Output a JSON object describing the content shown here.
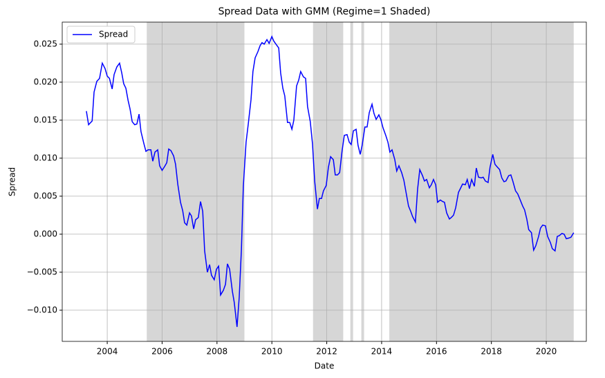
{
  "chart_data": {
    "type": "line",
    "title": "Spread Data with GMM (Regime=1 Shaded)",
    "x_label": "Date",
    "y_label": "Spread",
    "grid": true,
    "legend": "upper left",
    "shade_color": "#d6d6d6",
    "shaded_regions": [
      [
        2005.44,
        2009.0
      ],
      [
        2011.5,
        2012.6
      ],
      [
        2012.86,
        2012.96
      ],
      [
        2013.26,
        2013.36
      ],
      [
        2014.28,
        2021.0
      ]
    ],
    "xlim": [
      2002.36,
      2021.46
    ],
    "ylim": [
      -0.0141,
      0.0279
    ],
    "xticks": [
      2004,
      2006,
      2008,
      2010,
      2012,
      2014,
      2016,
      2018,
      2020
    ],
    "yticks": [
      {
        "value": -0.01,
        "label": "−0.010"
      },
      {
        "value": -0.005,
        "label": "−0.005"
      },
      {
        "value": 0,
        "label": "0.000"
      },
      0.005,
      {
        "value": 0.01,
        "label": "0.010"
      },
      0.015,
      {
        "value": 0.02,
        "label": "0.020"
      },
      0.025
    ],
    "x": [
      2003.24,
      2003.32,
      2003.45,
      2003.52,
      2003.62,
      2003.72,
      2003.82,
      2003.92,
      2004.0,
      2004.08,
      2004.18,
      2004.25,
      2004.35,
      2004.45,
      2004.53,
      2004.6,
      2004.68,
      2004.76,
      2004.83,
      2004.91,
      2005.0,
      2005.08,
      2005.16,
      2005.23,
      2005.33,
      2005.41,
      2005.49,
      2005.59,
      2005.66,
      2005.74,
      2005.84,
      2005.91,
      2006.0,
      2006.09,
      2006.17,
      2006.24,
      2006.32,
      2006.42,
      2006.49,
      2006.57,
      2006.67,
      2006.75,
      2006.82,
      2006.9,
      2007.0,
      2007.07,
      2007.15,
      2007.22,
      2007.32,
      2007.4,
      2007.48,
      2007.55,
      2007.65,
      2007.73,
      2007.8,
      2007.9,
      2007.98,
      2008.06,
      2008.13,
      2008.23,
      2008.31,
      2008.38,
      2008.46,
      2008.56,
      2008.63,
      2008.73,
      2008.81,
      2008.89,
      2008.96,
      2009.06,
      2009.14,
      2009.24,
      2009.31,
      2009.39,
      2009.49,
      2009.57,
      2009.64,
      2009.72,
      2009.82,
      2009.9,
      2010.0,
      2010.07,
      2010.15,
      2010.25,
      2010.32,
      2010.4,
      2010.47,
      2010.57,
      2010.65,
      2010.73,
      2010.8,
      2010.9,
      2010.98,
      2011.05,
      2011.15,
      2011.23,
      2011.3,
      2011.4,
      2011.48,
      2011.56,
      2011.66,
      2011.73,
      2011.81,
      2011.88,
      2011.98,
      2012.06,
      2012.14,
      2012.24,
      2012.31,
      2012.39,
      2012.47,
      2012.56,
      2012.64,
      2012.74,
      2012.82,
      2012.89,
      2012.97,
      2013.07,
      2013.14,
      2013.22,
      2013.29,
      2013.39,
      2013.47,
      2013.55,
      2013.65,
      2013.72,
      2013.8,
      2013.9,
      2013.97,
      2014.05,
      2014.15,
      2014.23,
      2014.3,
      2014.38,
      2014.48,
      2014.55,
      2014.63,
      2014.73,
      2014.81,
      2014.88,
      2014.98,
      2015.06,
      2015.13,
      2015.23,
      2015.31,
      2015.39,
      2015.49,
      2015.56,
      2015.64,
      2015.74,
      2015.81,
      2015.89,
      2015.97,
      2016.04,
      2016.14,
      2016.22,
      2016.29,
      2016.37,
      2016.47,
      2016.54,
      2016.62,
      2016.7,
      2016.8,
      2016.87,
      2016.95,
      2017.05,
      2017.12,
      2017.2,
      2017.28,
      2017.38,
      2017.45,
      2017.53,
      2017.63,
      2017.7,
      2017.78,
      2017.88,
      2017.95,
      2018.05,
      2018.13,
      2018.2,
      2018.3,
      2018.38,
      2018.46,
      2018.53,
      2018.63,
      2018.71,
      2018.78,
      2018.88,
      2018.96,
      2019.04,
      2019.14,
      2019.21,
      2019.29,
      2019.36,
      2019.46,
      2019.54,
      2019.62,
      2019.72,
      2019.79,
      2019.87,
      2019.97,
      2020.05,
      2020.15,
      2020.22,
      2020.32,
      2020.4,
      2020.47,
      2020.57,
      2020.65,
      2020.73,
      2020.83,
      2020.9,
      2021.0
    ],
    "series": [
      {
        "name": "Spread",
        "color": "#0000ff",
        "values": [
          0.0162,
          0.0144,
          0.0149,
          0.0187,
          0.0201,
          0.0205,
          0.0225,
          0.0218,
          0.0208,
          0.0205,
          0.0191,
          0.021,
          0.022,
          0.0225,
          0.0212,
          0.0198,
          0.0192,
          0.0176,
          0.0165,
          0.0148,
          0.0144,
          0.0145,
          0.0158,
          0.0135,
          0.012,
          0.0109,
          0.0111,
          0.0111,
          0.0096,
          0.0108,
          0.0111,
          0.009,
          0.0084,
          0.0089,
          0.0094,
          0.0112,
          0.011,
          0.0103,
          0.0092,
          0.0066,
          0.0042,
          0.0031,
          0.0015,
          0.0012,
          0.0028,
          0.0024,
          0.0007,
          0.0019,
          0.0022,
          0.0043,
          0.003,
          -0.0022,
          -0.005,
          -0.004,
          -0.0054,
          -0.006,
          -0.0046,
          -0.0042,
          -0.008,
          -0.0074,
          -0.0066,
          -0.0039,
          -0.0046,
          -0.0075,
          -0.009,
          -0.0122,
          -0.0083,
          -0.002,
          0.0063,
          0.0121,
          0.0145,
          0.0177,
          0.0214,
          0.0232,
          0.024,
          0.0248,
          0.0252,
          0.025,
          0.0256,
          0.0251,
          0.026,
          0.0254,
          0.025,
          0.0245,
          0.0212,
          0.0192,
          0.0182,
          0.0147,
          0.0147,
          0.0138,
          0.015,
          0.0195,
          0.0203,
          0.0214,
          0.0207,
          0.0205,
          0.0168,
          0.0148,
          0.0119,
          0.007,
          0.0033,
          0.0047,
          0.0047,
          0.0057,
          0.0064,
          0.0088,
          0.0102,
          0.0098,
          0.0078,
          0.0078,
          0.0081,
          0.011,
          0.013,
          0.0131,
          0.0121,
          0.0118,
          0.0136,
          0.0138,
          0.0117,
          0.0105,
          0.0117,
          0.0141,
          0.0141,
          0.016,
          0.0171,
          0.0159,
          0.0151,
          0.0157,
          0.0151,
          0.014,
          0.013,
          0.0121,
          0.0108,
          0.0111,
          0.0098,
          0.0083,
          0.009,
          0.0081,
          0.0071,
          0.0057,
          0.0037,
          0.003,
          0.0023,
          0.0016,
          0.0059,
          0.0085,
          0.0077,
          0.007,
          0.0072,
          0.0061,
          0.0065,
          0.0072,
          0.0065,
          0.0042,
          0.0045,
          0.0043,
          0.0042,
          0.0028,
          0.002,
          0.0022,
          0.0025,
          0.0035,
          0.0055,
          0.006,
          0.0066,
          0.0065,
          0.0072,
          0.006,
          0.0072,
          0.0063,
          0.0087,
          0.0075,
          0.0074,
          0.0075,
          0.007,
          0.0068,
          0.0088,
          0.0105,
          0.0092,
          0.0089,
          0.0085,
          0.0074,
          0.0069,
          0.007,
          0.0077,
          0.0078,
          0.007,
          0.0057,
          0.0053,
          0.0046,
          0.0037,
          0.0032,
          0.002,
          0.0006,
          0.0002,
          -0.0021,
          -0.0015,
          -0.0003,
          0.0008,
          0.0012,
          0.0011,
          -0.0003,
          -0.0011,
          -0.0019,
          -0.0022,
          -0.0003,
          -0.0002,
          0.0001,
          0,
          -0.0006,
          -0.0005,
          -0.0004,
          0.0002
        ]
      }
    ]
  }
}
